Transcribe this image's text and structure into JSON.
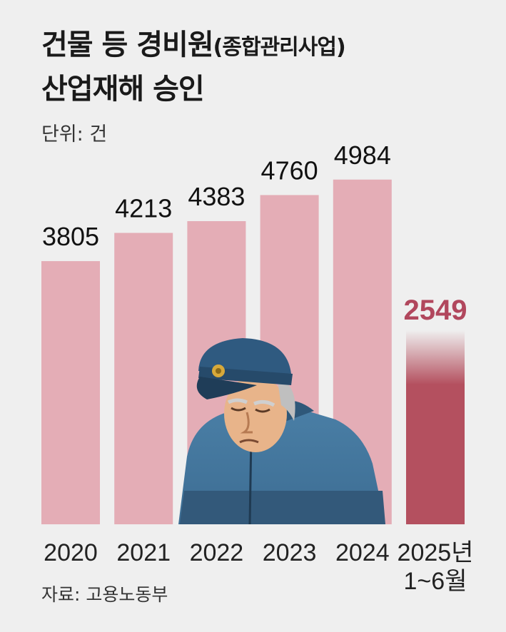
{
  "title_line1": "건물 등 경비원",
  "title_sub": "(종합관리사업)",
  "title_line2": "산업재해 승인",
  "unit": "단위: 건",
  "source": "자료: 고용노동부",
  "chart_data": {
    "type": "bar",
    "categories": [
      "2020",
      "2021",
      "2022",
      "2023",
      "2024",
      "2025년\n1~6월"
    ],
    "values": [
      3805,
      4213,
      4383,
      4760,
      4984,
      2549
    ],
    "ylim": [
      0,
      5500
    ],
    "grid": false,
    "colors": {
      "bar": "#e4adb6",
      "highlight": "#b4505f",
      "highlight_label": "#b1475d"
    },
    "highlight_index": 5
  }
}
